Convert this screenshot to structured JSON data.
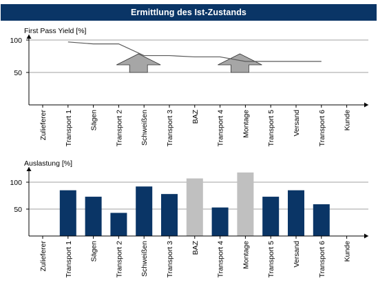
{
  "banner": {
    "title": "Ermittlung des Ist-Zustands"
  },
  "colors": {
    "banner": "#0a3566",
    "bar_normal": "#0a3566",
    "bar_highlight": "#c0c0c0",
    "line": "#595959",
    "arrow_fill": "#a6a6a6",
    "grid": "#808080"
  },
  "chart_data": [
    {
      "type": "line",
      "title": "",
      "ylabel": "First Pass Yield [%]",
      "xlabel": "",
      "categories": [
        "Zulieferer",
        "Transport 1",
        "Sägen",
        "Transport 2",
        "Schweißen",
        "Transport 3",
        "BAZ",
        "Transport 4",
        "Montage",
        "Transport 5",
        "Versand",
        "Transport 6",
        "Kunde"
      ],
      "series": [
        {
          "values": [
            null,
            97,
            94,
            94,
            76,
            76,
            74,
            74,
            67,
            67,
            67,
            67,
            null
          ]
        }
      ],
      "yticks": [
        50,
        100
      ],
      "ylim": [
        0,
        100
      ],
      "grid": true,
      "annotations": [
        {
          "type": "arrow-up",
          "category": "Schweißen"
        },
        {
          "type": "arrow-up",
          "category": "Montage"
        }
      ]
    },
    {
      "type": "bar",
      "title": "",
      "ylabel": "Auslastung [%]",
      "xlabel": "",
      "categories": [
        "Zulieferer",
        "Transport 1",
        "Sägen",
        "Transport 2",
        "Schweißen",
        "Transport 3",
        "BAZ",
        "Transport 4",
        "Montage",
        "Transport 5",
        "Versand",
        "Transport 6",
        "Kunde"
      ],
      "values": [
        null,
        85,
        73,
        43,
        92,
        78,
        107,
        53,
        118,
        73,
        85,
        59,
        null
      ],
      "highlighted": [
        "BAZ",
        "Montage"
      ],
      "yticks": [
        50,
        100
      ],
      "ylim": [
        0,
        120
      ],
      "grid": true
    }
  ]
}
